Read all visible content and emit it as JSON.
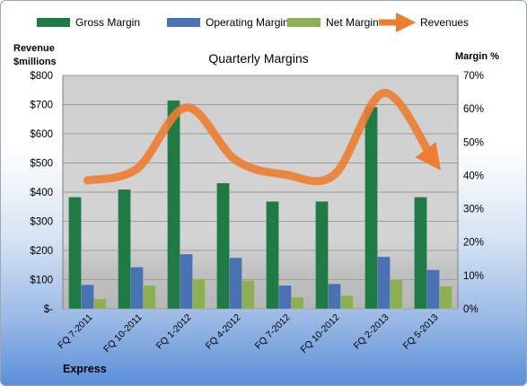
{
  "chart_data": {
    "type": "bar",
    "title": "Quarterly Margins",
    "footer": "Express",
    "categories": [
      "FQ 7-2011",
      "FQ 10-2011",
      "FQ 1-2012",
      "FQ 4-2012",
      "FQ 7-2012",
      "FQ 10-2012",
      "FQ 2-2013",
      "FQ 5-2013"
    ],
    "series": [
      {
        "name": "Gross Margin",
        "kind": "bar",
        "axis": "right",
        "color": "#1f7a45",
        "values": [
          33.5,
          35.8,
          62.5,
          37.7,
          32.2,
          32.2,
          60.5,
          33.5
        ]
      },
      {
        "name": "Operating Margin",
        "kind": "bar",
        "axis": "right",
        "color": "#4a72b2",
        "values": [
          7.2,
          12.5,
          16.4,
          15.3,
          7.0,
          7.5,
          15.6,
          11.7
        ]
      },
      {
        "name": "Net Margin",
        "kind": "bar",
        "axis": "right",
        "color": "#8db056",
        "values": [
          3.0,
          7.0,
          9.0,
          8.5,
          3.5,
          4.0,
          8.8,
          6.8
        ]
      },
      {
        "name": "Revenues",
        "kind": "line",
        "axis": "left",
        "color": "#ed7d31",
        "values": [
          440,
          480,
          690,
          510,
          460,
          460,
          740,
          510
        ]
      }
    ],
    "y_left": {
      "label_line1": "Revenue",
      "label_line2": "$millions",
      "ylim": [
        0,
        800
      ],
      "ticks": [
        "$-",
        "$100",
        "$200",
        "$300",
        "$400",
        "$500",
        "$600",
        "$700",
        "$800"
      ]
    },
    "y_right": {
      "label": "Margin %",
      "ylim": [
        0,
        70
      ],
      "ticks": [
        "0%",
        "10%",
        "20%",
        "30%",
        "40%",
        "50%",
        "60%",
        "70%"
      ]
    },
    "legend_position": "top",
    "grid": true
  }
}
